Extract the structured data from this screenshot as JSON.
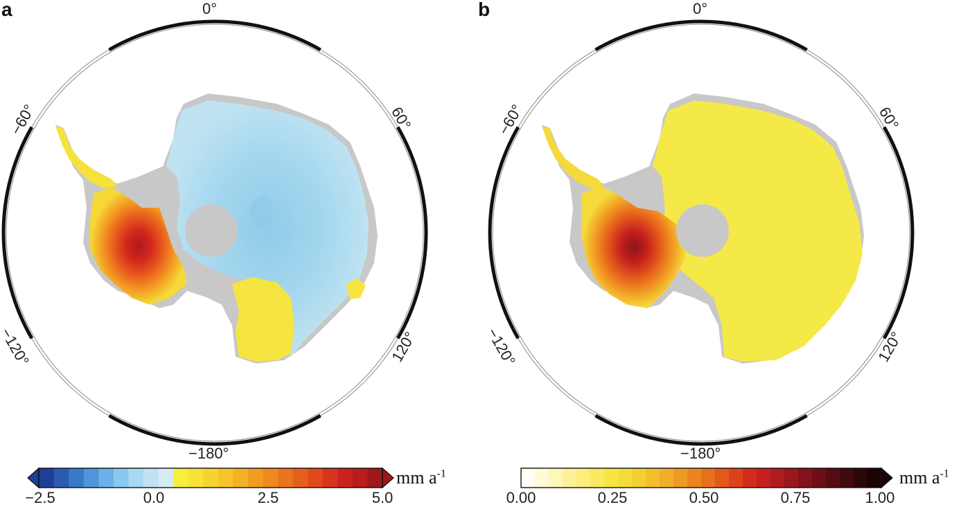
{
  "panels": [
    {
      "letter": "a",
      "lon_labels": {
        "top": "0°",
        "upper_left": "−60°",
        "upper_right": "60°",
        "lower_left": "−120°",
        "lower_right": "120°",
        "bottom": "−180°"
      },
      "colorbar": {
        "ticks": [
          "−2.5",
          "0.0",
          "2.5",
          "5.0"
        ],
        "unit_main": "mm a",
        "unit_sup": "-1",
        "range": [
          -2.5,
          5.0
        ],
        "extend": "both",
        "colors": [
          "#1e3f96",
          "#2a5bb0",
          "#3a78c8",
          "#4f95d8",
          "#6bb0e6",
          "#8ac8ef",
          "#a8d9f2",
          "#c0e3f3",
          "#d4ebf3",
          "#f6ef3c",
          "#f7e335",
          "#f6d42f",
          "#f5c42a",
          "#f3b126",
          "#f19d22",
          "#ee891f",
          "#ea741d",
          "#e55f1c",
          "#df4a1d",
          "#d8341e",
          "#cc2121",
          "#b81c1c",
          "#a0181a"
        ]
      }
    },
    {
      "letter": "b",
      "lon_labels": {
        "top": "0°",
        "upper_left": "−60°",
        "upper_right": "60°",
        "lower_left": "−120°",
        "lower_right": "120°",
        "bottom": "−180°"
      },
      "colorbar": {
        "ticks": [
          "0.00",
          "0.25",
          "0.50",
          "0.75",
          "1.00"
        ],
        "unit_main": "mm a",
        "unit_sup": "-1",
        "range": [
          0.0,
          1.0
        ],
        "extend": "max",
        "colors": [
          "#fffef2",
          "#fffbd6",
          "#fef7b8",
          "#fdf29a",
          "#fbee7c",
          "#f8ea5e",
          "#f6e542",
          "#f5dc3a",
          "#f4cf33",
          "#f3c02d",
          "#f1ae28",
          "#ef9a24",
          "#ec8520",
          "#e8701d",
          "#e3591c",
          "#dc431c",
          "#d32c1d",
          "#c61f20",
          "#b01b1f",
          "#9a171c",
          "#83131a",
          "#6c1016",
          "#560c12",
          "#400a0e",
          "#2c0709",
          "#1a0405"
        ]
      }
    }
  ],
  "colors": {
    "land_gray": "#c8c8c8",
    "blue_fill": "#aadaed",
    "yellow_fill": "#f6ea44",
    "warm_core": "#b8201a"
  }
}
